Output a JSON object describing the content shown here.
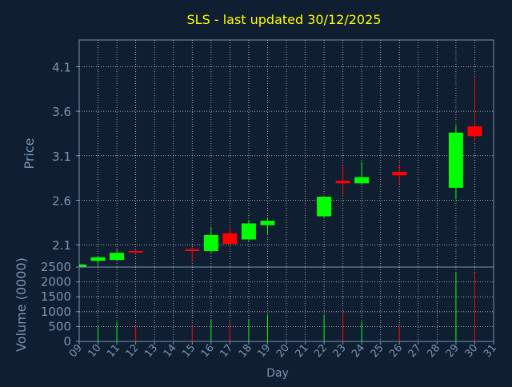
{
  "chart_data": {
    "type": "candlestick",
    "title": "SLS - last updated 30/12/2025",
    "xlabel": "Day",
    "price_panel": {
      "ylabel": "Price",
      "yticks": [
        "2.1",
        "2.6",
        "3.1",
        "3.6",
        "4.1"
      ],
      "ylim": [
        1.85,
        4.4
      ]
    },
    "volume_panel": {
      "ylabel": "Volume (0000)",
      "yticks": [
        "0",
        "500",
        "1000",
        "1500",
        "2000",
        "2500"
      ],
      "ylim": [
        0,
        2500
      ]
    },
    "x_tick_labels": [
      "09",
      "10",
      "11",
      "12",
      "13",
      "14",
      "15",
      "16",
      "17",
      "18",
      "19",
      "20",
      "21",
      "22",
      "23",
      "24",
      "25",
      "26",
      "27",
      "28",
      "29",
      "30",
      "31"
    ],
    "series": [
      {
        "day": "09",
        "open": 1.84,
        "high": 1.88,
        "low": 1.82,
        "close": 1.88,
        "volume": 0
      },
      {
        "day": "10",
        "open": 1.92,
        "high": 1.97,
        "low": 1.87,
        "close": 1.96,
        "volume": 500
      },
      {
        "day": "11",
        "open": 1.93,
        "high": 2.05,
        "low": 1.92,
        "close": 2.01,
        "volume": 650
      },
      {
        "day": "12",
        "open": 2.03,
        "high": 2.05,
        "low": 2.01,
        "close": 2.02,
        "volume": 550
      },
      {
        "day": "15",
        "open": 2.05,
        "high": 2.07,
        "low": 1.91,
        "close": 2.03,
        "volume": 550
      },
      {
        "day": "16",
        "open": 2.03,
        "high": 2.3,
        "low": 2.01,
        "close": 2.21,
        "volume": 750
      },
      {
        "day": "17",
        "open": 2.23,
        "high": 2.3,
        "low": 2.1,
        "close": 2.11,
        "volume": 600
      },
      {
        "day": "18",
        "open": 2.16,
        "high": 2.37,
        "low": 2.14,
        "close": 2.34,
        "volume": 750
      },
      {
        "day": "19",
        "open": 2.32,
        "high": 2.41,
        "low": 2.22,
        "close": 2.37,
        "volume": 900
      },
      {
        "day": "22",
        "open": 2.42,
        "high": 2.65,
        "low": 2.41,
        "close": 2.64,
        "volume": 900
      },
      {
        "day": "23",
        "open": 2.82,
        "high": 2.99,
        "low": 2.64,
        "close": 2.79,
        "volume": 950
      },
      {
        "day": "24",
        "open": 2.79,
        "high": 3.03,
        "low": 2.78,
        "close": 2.86,
        "volume": 650
      },
      {
        "day": "26",
        "open": 2.92,
        "high": 3.01,
        "low": 2.78,
        "close": 2.88,
        "volume": 500
      },
      {
        "day": "29",
        "open": 2.74,
        "high": 3.44,
        "low": 2.61,
        "close": 3.36,
        "volume": 2300
      },
      {
        "day": "30",
        "open": 3.43,
        "high": 3.98,
        "low": 3.26,
        "close": 3.32,
        "volume": 2300
      }
    ],
    "colors": {
      "background": "#0f1e30",
      "up": "#00ff00",
      "down": "#ff0000",
      "axis": "#7a94b4",
      "grid": "#c8c8c8",
      "title": "#ffff00",
      "text": "#7a94b4"
    }
  }
}
